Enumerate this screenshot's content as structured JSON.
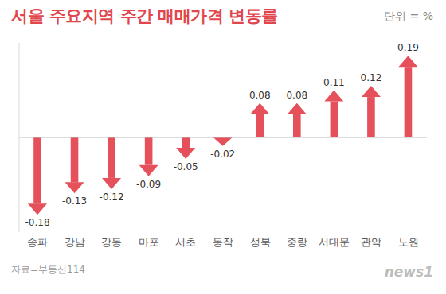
{
  "chart_data": {
    "type": "bar",
    "title": "서울 주요지역 주간 매매가격 변동률",
    "subtitle": "단위 = %",
    "source": "자료=부동산114",
    "watermark": "news1",
    "categories": [
      "송파",
      "강남",
      "강동",
      "마포",
      "서초",
      "동작",
      "성북",
      "중랑",
      "서대문",
      "관악",
      "노원"
    ],
    "values": [
      -0.18,
      -0.13,
      -0.12,
      -0.09,
      -0.05,
      -0.02,
      0.08,
      0.08,
      0.11,
      0.12,
      0.19
    ],
    "color": "#e5505a",
    "ylim": [
      -0.22,
      0.22
    ],
    "data_labels": true,
    "tick_labels": "x",
    "grid": false
  }
}
